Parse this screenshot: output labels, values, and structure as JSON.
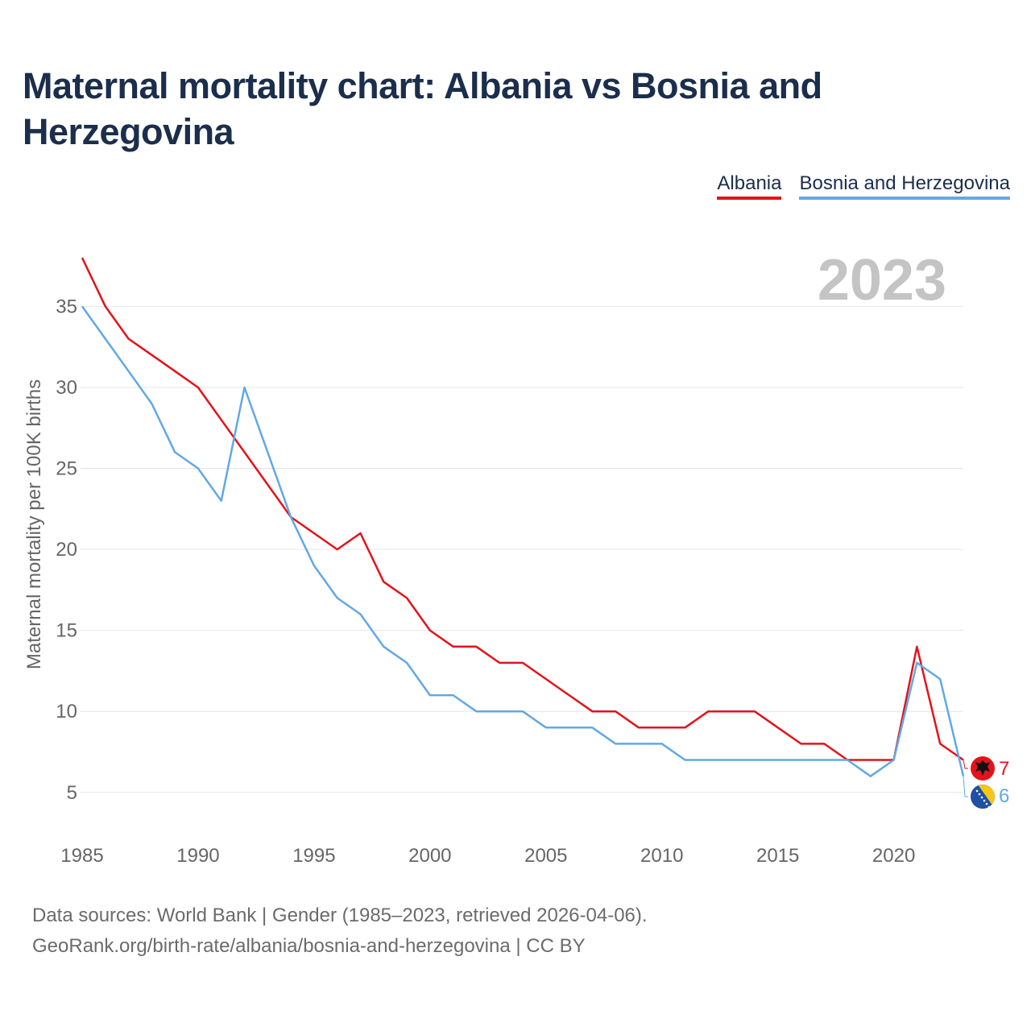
{
  "title": "Maternal mortality chart: Albania vs Bosnia and Herzegovina",
  "footer": {
    "line1": "Data sources: World Bank | Gender (1985–2023, retrieved 2026-04-06).",
    "line2": "GeoRank.org/birth-rate/albania/bosnia-and-herzegovina | CC BY"
  },
  "colors": {
    "albania": "#e3131b",
    "bosnia": "#62a8e5",
    "grid": "#e6e6e6",
    "axis_text": "#666666",
    "year_watermark": "#c4c4c4"
  },
  "chart_data": {
    "type": "line",
    "year_label": "2023",
    "ylabel": "Maternal mortality per 100K births",
    "xlabel": "",
    "xlim": [
      1985,
      2023
    ],
    "ylim": [
      3,
      38.5
    ],
    "x_ticks": [
      1985,
      1990,
      1995,
      2000,
      2005,
      2010,
      2015,
      2020
    ],
    "y_ticks": [
      5,
      10,
      15,
      20,
      25,
      30,
      35
    ],
    "x": [
      1985,
      1986,
      1987,
      1988,
      1989,
      1990,
      1991,
      1992,
      1993,
      1994,
      1995,
      1996,
      1997,
      1998,
      1999,
      2000,
      2001,
      2002,
      2003,
      2004,
      2005,
      2006,
      2007,
      2008,
      2009,
      2010,
      2011,
      2012,
      2013,
      2014,
      2015,
      2016,
      2017,
      2018,
      2019,
      2020,
      2021,
      2022,
      2023
    ],
    "series": [
      {
        "name": "Albania",
        "color_key": "albania",
        "end_label": "7",
        "values": [
          38,
          35,
          33,
          32,
          31,
          30,
          28,
          26,
          24,
          22,
          21,
          20,
          21,
          18,
          17,
          15,
          14,
          14,
          13,
          13,
          12,
          11,
          10,
          10,
          9,
          9,
          9,
          10,
          10,
          10,
          9,
          8,
          8,
          7,
          7,
          7,
          14,
          8,
          7
        ]
      },
      {
        "name": "Bosnia and Herzegovina",
        "color_key": "bosnia",
        "end_label": "6",
        "values": [
          35,
          33,
          31,
          29,
          26,
          25,
          23,
          30,
          26,
          22,
          19,
          17,
          16,
          14,
          13,
          11,
          11,
          10,
          10,
          10,
          9,
          9,
          9,
          8,
          8,
          8,
          7,
          7,
          7,
          7,
          7,
          7,
          7,
          7,
          6,
          7,
          13,
          12,
          6
        ]
      }
    ]
  }
}
